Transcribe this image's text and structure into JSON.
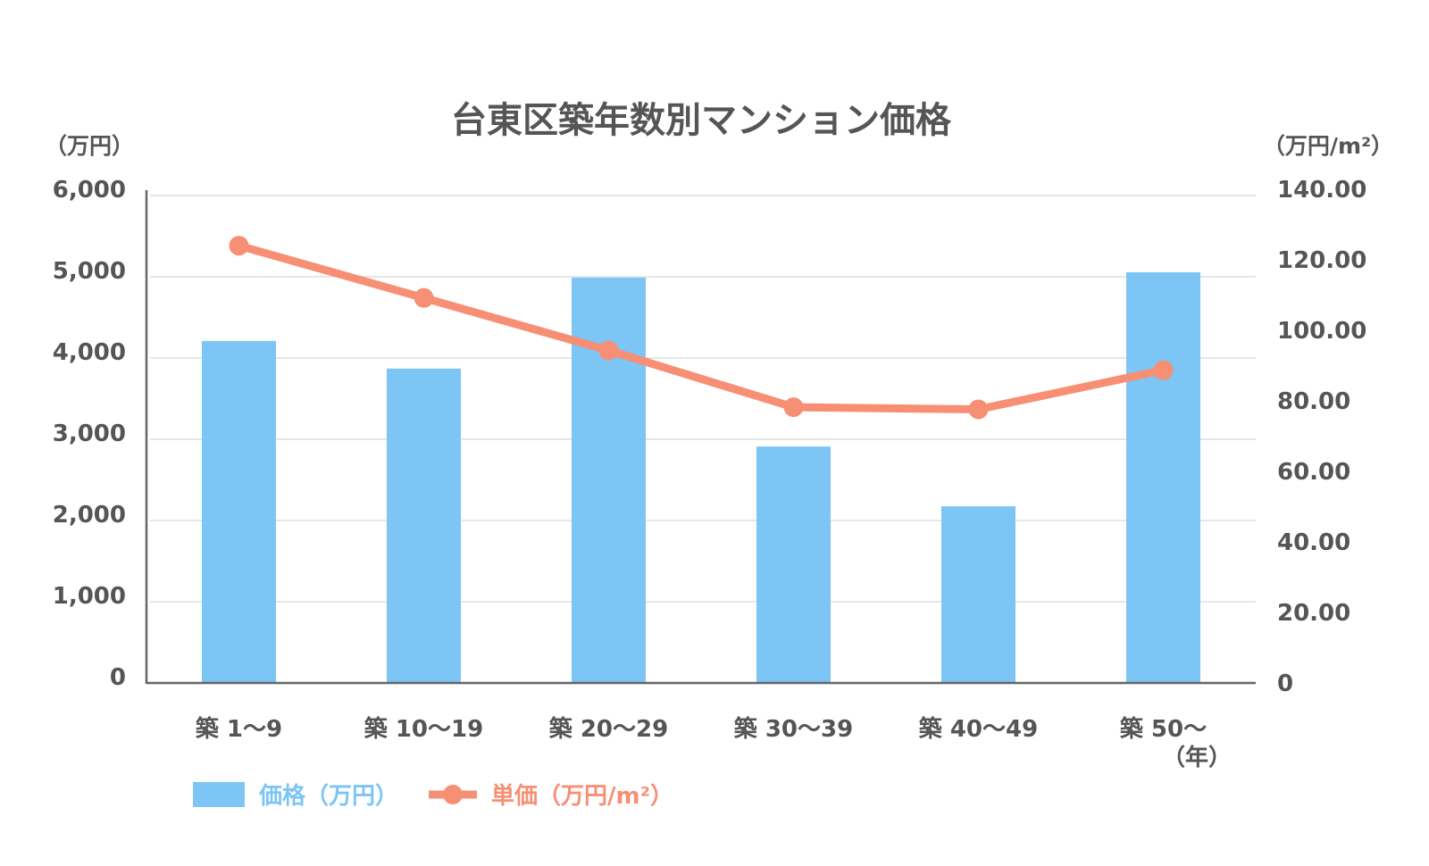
{
  "chart_data": {
    "type": "bar+line",
    "title": "台東区築年数別マンション価格",
    "categories": [
      "築 1〜9",
      "築 10〜19",
      "築 20〜29",
      "築 30〜39",
      "築 40〜49",
      "築 50〜"
    ],
    "xlabel": "（年）",
    "y_left": {
      "label": "（万円）",
      "range": [
        0,
        6000
      ],
      "ticks": [
        0,
        1000,
        2000,
        3000,
        4000,
        5000,
        6000
      ],
      "tick_labels": [
        "0",
        "1,000",
        "2,000",
        "3,000",
        "4,000",
        "5,000",
        "6,000"
      ]
    },
    "y_right": {
      "label": "（万円/m²）",
      "range": [
        0,
        140
      ],
      "ticks": [
        0,
        20,
        40,
        60,
        80,
        100,
        120,
        140
      ],
      "tick_labels": [
        "0",
        "20.00",
        "40.00",
        "60.00",
        "80.00",
        "100.00",
        "120.00",
        "140.00"
      ]
    },
    "grid": true,
    "legend_position": "bottom-left",
    "series": [
      {
        "name": "価格（万円）",
        "type": "bar",
        "axis": "left",
        "color": "#7cc5f5",
        "values": [
          4210,
          3870,
          4990,
          2910,
          2175,
          5055
        ]
      },
      {
        "name": "単価（万円/m²）",
        "type": "line",
        "axis": "right",
        "color": "#f78f74",
        "values": [
          124.0,
          109.2,
          94.3,
          78.2,
          77.6,
          88.7
        ]
      }
    ]
  }
}
